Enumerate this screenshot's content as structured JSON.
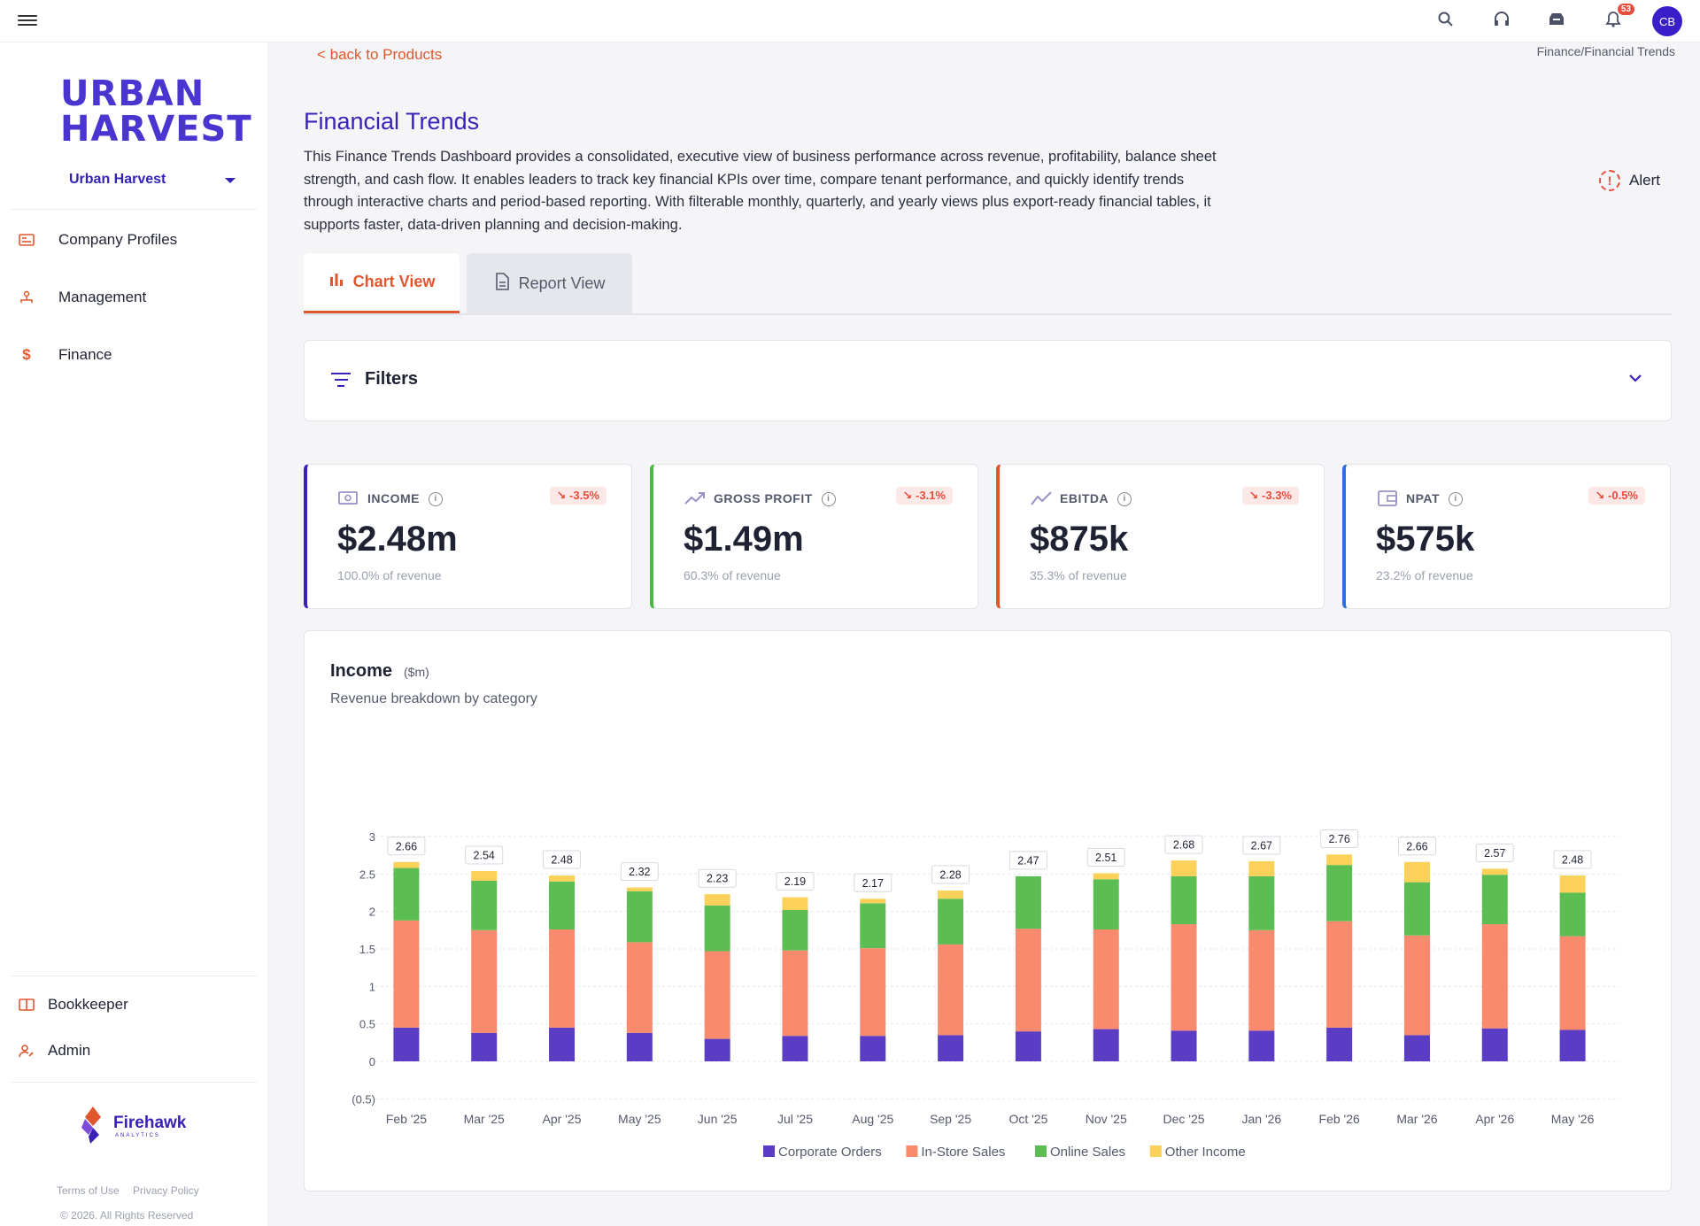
{
  "topbar": {
    "notification_count": "53",
    "avatar_initials": "CB"
  },
  "sidebar": {
    "logo_line1": "URBAN",
    "logo_line2": "HARVEST",
    "tenant": "Urban Harvest",
    "items": [
      {
        "label": "Company Profiles",
        "icon": "id-card-icon"
      },
      {
        "label": "Management",
        "icon": "org-chart-icon"
      },
      {
        "label": "Finance",
        "icon": "dollar-icon"
      }
    ],
    "bottom_items": [
      {
        "label": "Bookkeeper",
        "icon": "book-icon"
      },
      {
        "label": "Admin",
        "icon": "user-edit-icon"
      }
    ],
    "footer": {
      "brand": "Firehawk",
      "brand_sub": "ANALYTICS",
      "terms": "Terms of Use",
      "privacy": "Privacy Policy",
      "copyright": "© 2026. All Rights Reserved"
    }
  },
  "main": {
    "back_link": "< back to Products",
    "breadcrumb": "Finance/Financial Trends",
    "title": "Financial Trends",
    "description": "This Finance Trends Dashboard provides a consolidated, executive view of business performance across revenue, profitability, balance sheet strength, and cash flow. It enables leaders to track key financial KPIs over time, compare tenant performance, and quickly identify trends through interactive charts and period-based reporting. With filterable monthly, quarterly, and yearly views plus export-ready financial tables, it supports faster, data-driven planning and decision-making.",
    "alert_label": "Alert",
    "tabs": [
      {
        "label": "Chart View",
        "active": true
      },
      {
        "label": "Report View",
        "active": false
      }
    ],
    "filters_label": "Filters"
  },
  "kpis": [
    {
      "label": "INCOME",
      "value": "$2.48m",
      "sub": "100.0% of revenue",
      "delta": "-3.5%",
      "color": "#3a22b8"
    },
    {
      "label": "GROSS PROFIT",
      "value": "$1.49m",
      "sub": "60.3% of revenue",
      "delta": "-3.1%",
      "color": "#4cb847"
    },
    {
      "label": "EBITDA",
      "value": "$875k",
      "sub": "35.3% of revenue",
      "delta": "-3.3%",
      "color": "#e0572e"
    },
    {
      "label": "NPAT",
      "value": "$575k",
      "sub": "23.2% of revenue",
      "delta": "-0.5%",
      "color": "#2d6fdc"
    }
  ],
  "chart_card": {
    "title": "Income",
    "unit": "($m)",
    "subtitle": "Revenue breakdown by category"
  },
  "chart_data": {
    "type": "bar",
    "stacked": true,
    "categories": [
      "Feb '25",
      "Mar '25",
      "Apr '25",
      "May '25",
      "Jun '25",
      "Jul '25",
      "Aug '25",
      "Sep '25",
      "Oct '25",
      "Nov '25",
      "Dec '25",
      "Jan '26",
      "Feb '26",
      "Mar '26",
      "Apr '26",
      "May '26"
    ],
    "series": [
      {
        "name": "Corporate Orders",
        "color": "#5b3cc4",
        "values": [
          0.45,
          0.38,
          0.45,
          0.38,
          0.3,
          0.34,
          0.34,
          0.35,
          0.4,
          0.43,
          0.41,
          0.41,
          0.45,
          0.35,
          0.44,
          0.42
        ]
      },
      {
        "name": "In-Store Sales",
        "color": "#fa8a6e",
        "values": [
          1.43,
          1.37,
          1.31,
          1.21,
          1.17,
          1.14,
          1.17,
          1.21,
          1.37,
          1.33,
          1.42,
          1.34,
          1.42,
          1.33,
          1.39,
          1.25
        ]
      },
      {
        "name": "Online Sales",
        "color": "#5cbe52",
        "values": [
          0.7,
          0.66,
          0.64,
          0.68,
          0.61,
          0.54,
          0.6,
          0.61,
          0.7,
          0.67,
          0.64,
          0.72,
          0.75,
          0.71,
          0.66,
          0.58
        ]
      },
      {
        "name": "Other Income",
        "color": "#fbd15a",
        "values": [
          0.08,
          0.13,
          0.08,
          0.05,
          0.15,
          0.17,
          0.06,
          0.11,
          0.0,
          0.08,
          0.21,
          0.2,
          0.14,
          0.27,
          0.08,
          0.23
        ]
      }
    ],
    "totals": [
      "2.66",
      "2.54",
      "2.48",
      "2.32",
      "2.23",
      "2.19",
      "2.17",
      "2.28",
      "2.47",
      "2.51",
      "2.68",
      "2.67",
      "2.76",
      "2.66",
      "2.57",
      "2.48"
    ],
    "y_ticks": [
      "3",
      "2.5",
      "2",
      "1.5",
      "1",
      "0.5",
      "0",
      "(0.5)"
    ],
    "ylim": [
      -0.5,
      3
    ],
    "grid": true,
    "legend_position": "bottom"
  }
}
